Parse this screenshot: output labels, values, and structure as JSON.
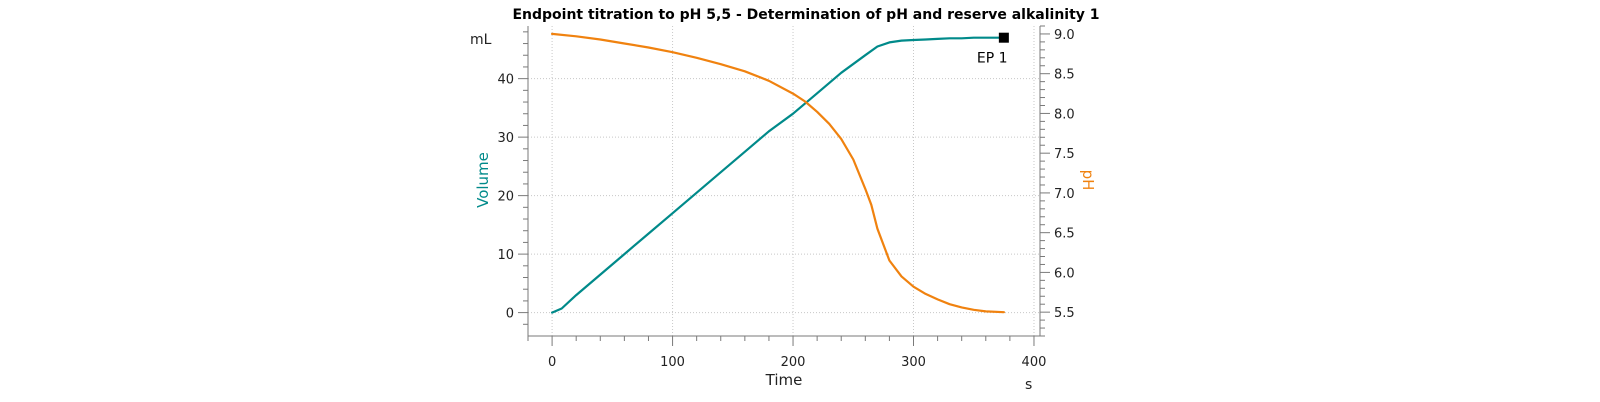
{
  "chart_data": {
    "type": "line",
    "title": "Endpoint titration to pH 5,5 - Determination of pH and reserve alkalinity  1",
    "xlabel": "Time",
    "x_unit": "s",
    "xlim": [
      -20,
      405
    ],
    "x_ticks": [
      0,
      100,
      200,
      300,
      400
    ],
    "grid": true,
    "y_left": {
      "label": "Volume",
      "unit": "mL",
      "lim": [
        -4,
        49
      ],
      "ticks": [
        0,
        10,
        20,
        30,
        40
      ],
      "color": "#008a8a"
    },
    "y_right": {
      "label": "pH",
      "lim": [
        5.2,
        9.1
      ],
      "ticks": [
        5.5,
        6.0,
        6.5,
        7.0,
        7.5,
        8.0,
        8.5,
        9.0
      ],
      "color": "#f0820f"
    },
    "series": [
      {
        "name": "Volume",
        "axis": "left",
        "color": "#008a8a",
        "x": [
          0,
          8,
          20,
          40,
          60,
          80,
          100,
          120,
          140,
          160,
          180,
          200,
          220,
          240,
          260,
          270,
          280,
          290,
          300,
          310,
          320,
          330,
          340,
          350,
          360,
          375
        ],
        "values": [
          0,
          0.7,
          3,
          6.5,
          10,
          13.5,
          17,
          20.5,
          24,
          27.5,
          31,
          34,
          37.5,
          41,
          44,
          45.5,
          46.2,
          46.5,
          46.6,
          46.7,
          46.8,
          46.9,
          46.9,
          47,
          47,
          47
        ]
      },
      {
        "name": "pH",
        "axis": "right",
        "color": "#f0820f",
        "x": [
          0,
          20,
          40,
          60,
          80,
          100,
          120,
          140,
          160,
          180,
          200,
          210,
          220,
          230,
          240,
          250,
          260,
          265,
          270,
          280,
          290,
          300,
          310,
          320,
          330,
          340,
          350,
          360,
          375
        ],
        "values": [
          9.0,
          8.97,
          8.93,
          8.88,
          8.83,
          8.77,
          8.7,
          8.62,
          8.53,
          8.41,
          8.25,
          8.15,
          8.02,
          7.87,
          7.68,
          7.42,
          7.05,
          6.85,
          6.55,
          6.15,
          5.95,
          5.82,
          5.73,
          5.66,
          5.6,
          5.56,
          5.53,
          5.51,
          5.5
        ]
      }
    ],
    "annotations": [
      {
        "text": "EP 1",
        "x": 375,
        "y": 47,
        "axis": "left",
        "marker": "square"
      }
    ]
  }
}
